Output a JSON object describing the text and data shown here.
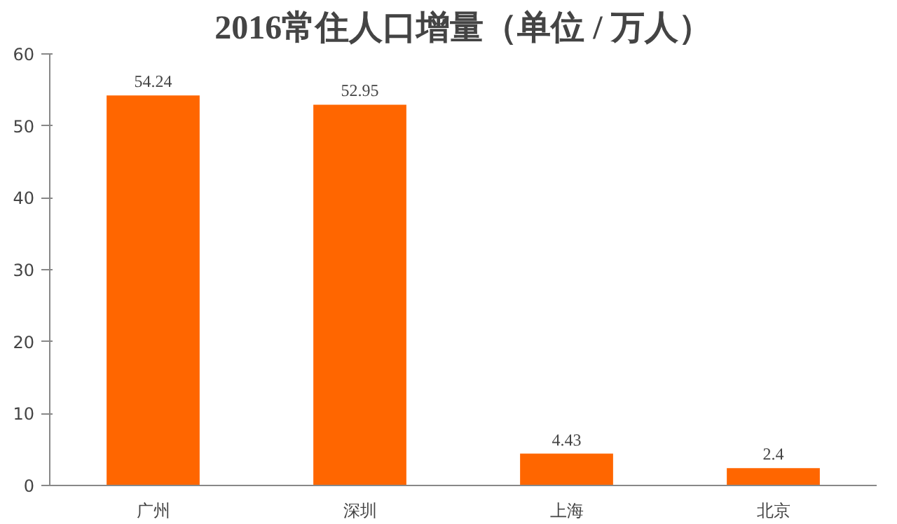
{
  "chart_data": {
    "type": "bar",
    "title": "2016常住人口增量（单位 / 万人）",
    "categories": [
      "广州",
      "深圳",
      "上海",
      "北京"
    ],
    "values": [
      54.24,
      52.95,
      4.43,
      2.4
    ],
    "color": "#ff6600",
    "data_labels": true,
    "grid": false,
    "ylim": [
      0,
      60
    ],
    "yticks": [
      0,
      10,
      20,
      30,
      40,
      50,
      60
    ]
  }
}
